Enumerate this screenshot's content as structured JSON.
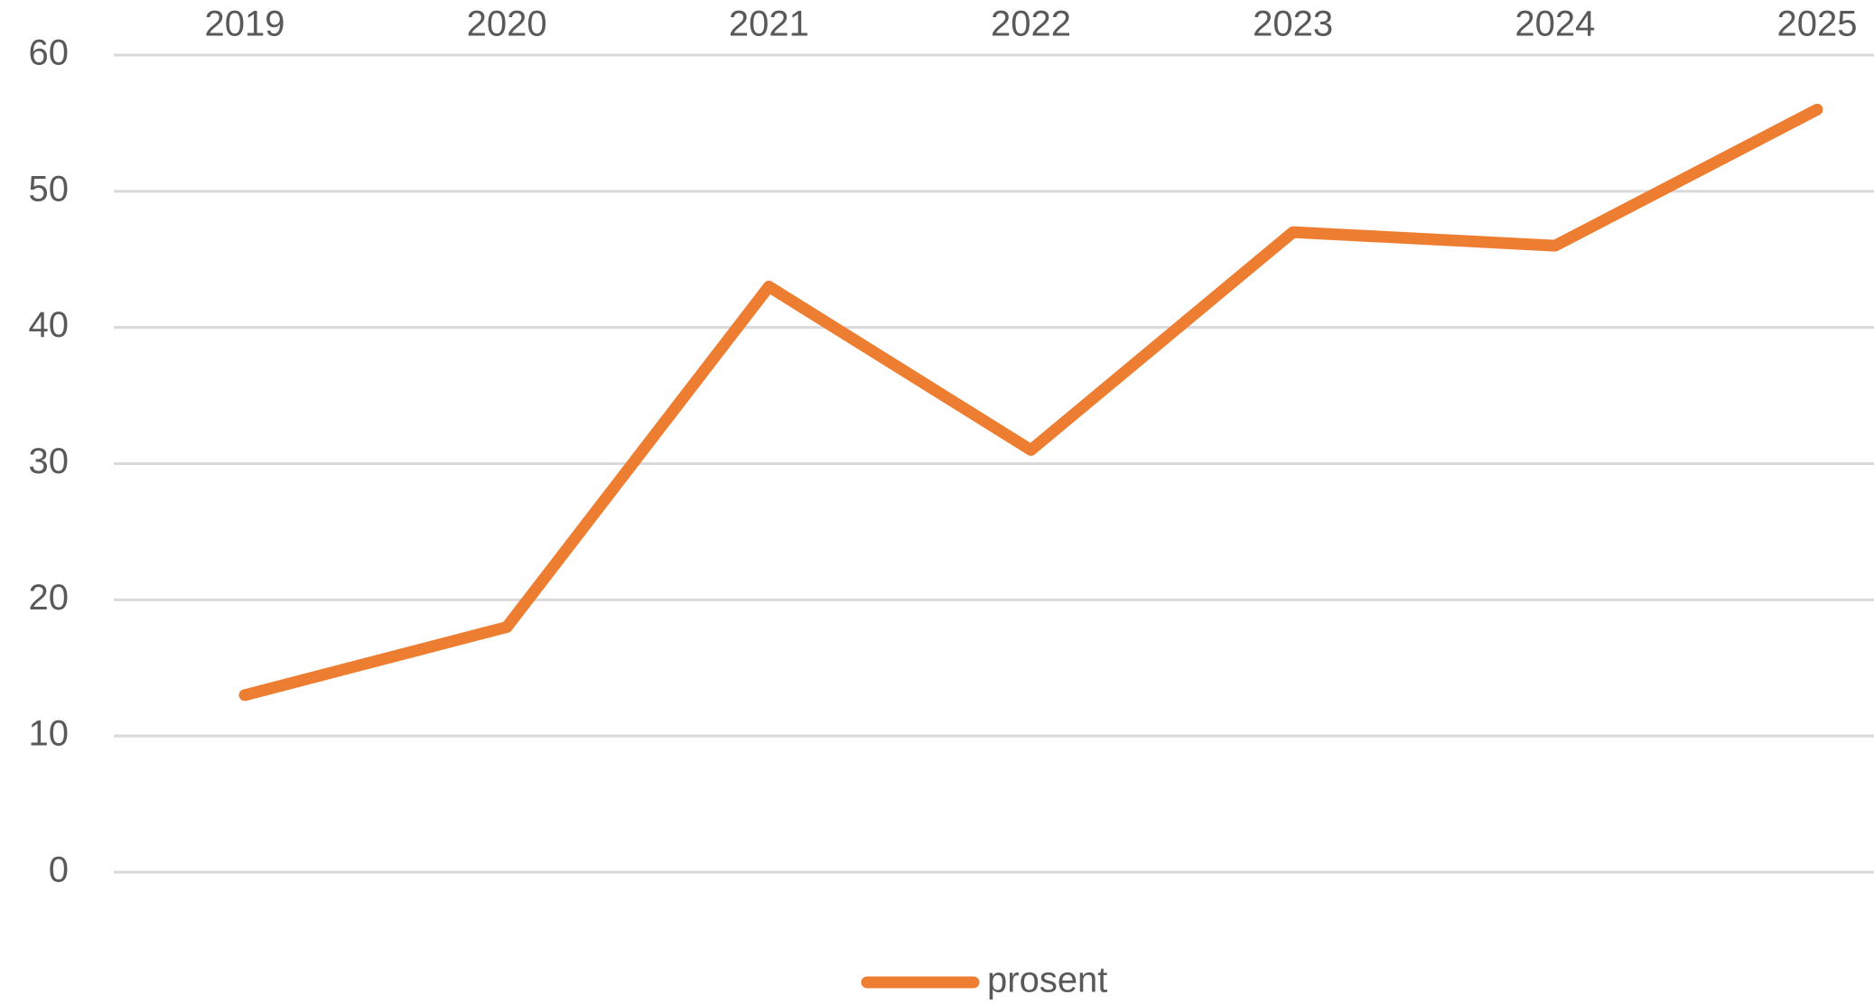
{
  "chart_data": {
    "type": "line",
    "categories": [
      "2019",
      "2020",
      "2021",
      "2022",
      "2023",
      "2024",
      "2025"
    ],
    "series": [
      {
        "name": "prosent",
        "color": "#ed7d31",
        "values": [
          13,
          18,
          43,
          31,
          47,
          46,
          56
        ]
      }
    ],
    "ylim": [
      0,
      60
    ],
    "yticks": [
      0,
      10,
      20,
      30,
      40,
      50,
      60
    ],
    "grid": true,
    "legend": "bottom"
  }
}
